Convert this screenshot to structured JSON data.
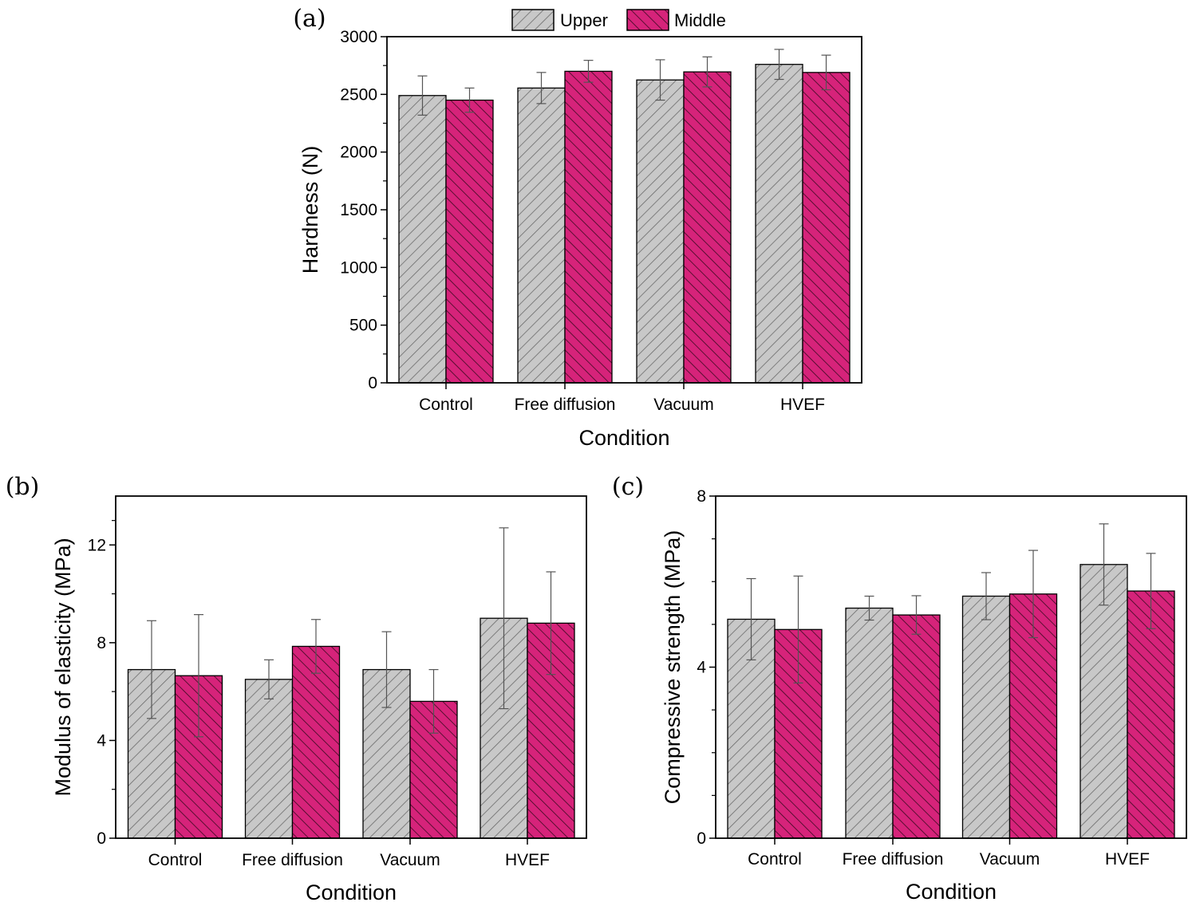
{
  "legend": [
    {
      "name": "Upper",
      "color": "#c8c8c8",
      "hatch": "forward"
    },
    {
      "name": "Middle",
      "color": "#d6237a",
      "hatch": "backward"
    }
  ],
  "chart_data": [
    {
      "panel": "(a)",
      "type": "bar",
      "xlabel": "Condition",
      "ylabel": "Hardness (N)",
      "categories": [
        "Control",
        "Free diffusion",
        "Vacuum",
        "HVEF"
      ],
      "ylim": [
        0,
        3000
      ],
      "yticks": [
        0,
        500,
        1000,
        1500,
        2000,
        2500,
        3000
      ],
      "yticklabels": [
        "0",
        "500",
        "1000",
        "1500",
        "2000",
        "2500",
        "3000"
      ],
      "series": [
        {
          "name": "Upper",
          "values": [
            2490,
            2555,
            2625,
            2760
          ],
          "errors": [
            170,
            135,
            175,
            130
          ]
        },
        {
          "name": "Middle",
          "values": [
            2450,
            2700,
            2695,
            2690
          ],
          "errors": [
            105,
            95,
            130,
            150
          ]
        }
      ]
    },
    {
      "panel": "(b)",
      "type": "bar",
      "xlabel": "Condition",
      "ylabel": "Modulus of elasticity (MPa)",
      "categories": [
        "Control",
        "Free diffusion",
        "Vacuum",
        "HVEF"
      ],
      "ylim": [
        0,
        14
      ],
      "yticks": [
        0,
        4,
        8,
        12
      ],
      "yticklabels": [
        "0",
        "4",
        "8",
        "12"
      ],
      "series": [
        {
          "name": "Upper",
          "values": [
            6.9,
            6.5,
            6.9,
            9.0
          ],
          "errors": [
            2.0,
            0.8,
            1.55,
            3.7
          ]
        },
        {
          "name": "Middle",
          "values": [
            6.65,
            7.85,
            5.6,
            8.8
          ],
          "errors": [
            2.5,
            1.1,
            1.3,
            2.1
          ]
        }
      ]
    },
    {
      "panel": "(c)",
      "type": "bar",
      "xlabel": "Condition",
      "ylabel": "Compressive strength (MPa)",
      "categories": [
        "Control",
        "Free diffusion",
        "Vacuum",
        "HVEF"
      ],
      "ylim": [
        0,
        8
      ],
      "yticks": [
        0,
        4,
        8
      ],
      "yticklabels": [
        "0",
        "4",
        "8"
      ],
      "series": [
        {
          "name": "Upper",
          "values": [
            5.12,
            5.38,
            5.66,
            6.4
          ],
          "errors": [
            0.95,
            0.28,
            0.55,
            0.95
          ]
        },
        {
          "name": "Middle",
          "values": [
            4.88,
            5.22,
            5.71,
            5.78
          ],
          "errors": [
            1.25,
            0.45,
            1.02,
            0.88
          ]
        }
      ]
    }
  ]
}
